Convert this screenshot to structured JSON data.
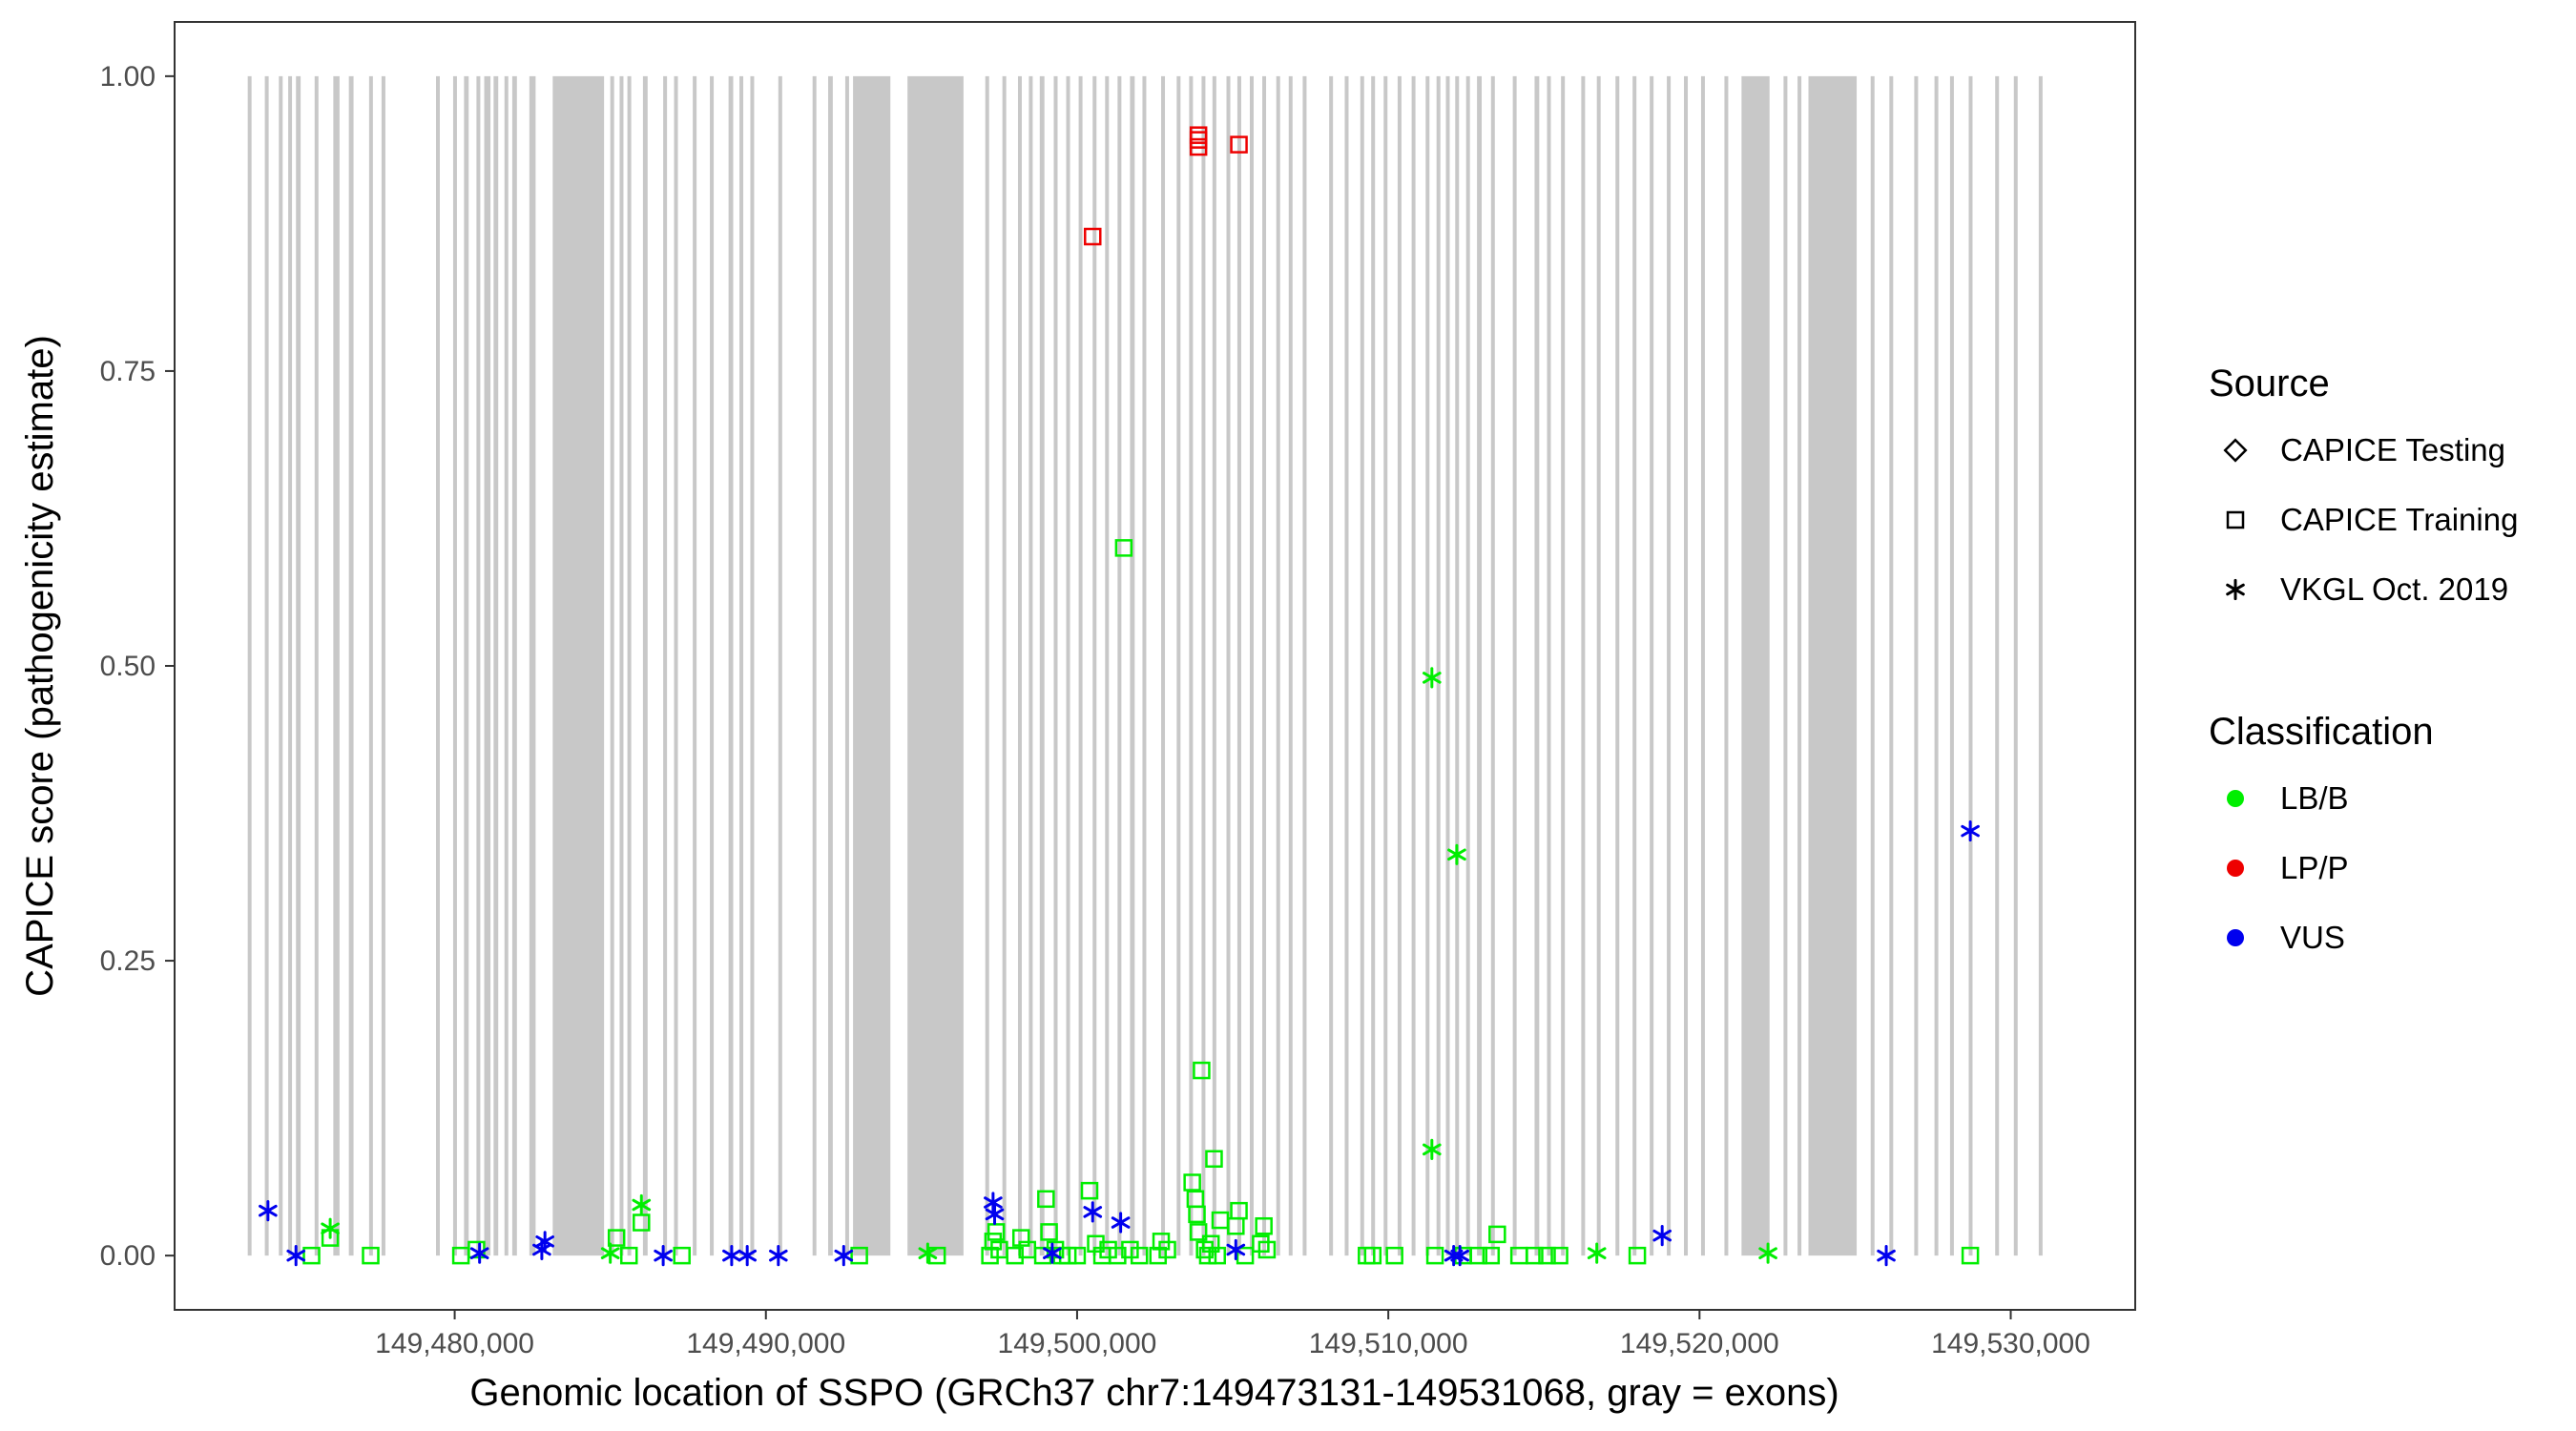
{
  "chart_data": {
    "type": "scatter",
    "xlabel": "Genomic location of SSPO (GRCh37 chr7:149473131-149531068, gray = exons)",
    "ylabel": "CAPICE score (pathogenicity estimate)",
    "xlim": [
      149471000,
      149534000
    ],
    "ylim": [
      -0.046,
      1.046
    ],
    "x_ticks": [
      149480000,
      149490000,
      149500000,
      149510000,
      149520000,
      149530000
    ],
    "x_tick_labels": [
      "149,480,000",
      "149,490,000",
      "149,500,000",
      "149,510,000",
      "149,520,000",
      "149,530,000"
    ],
    "y_ticks": [
      0,
      0.25,
      0.5,
      0.75,
      1
    ],
    "y_tick_labels": [
      "0.00",
      "0.25",
      "0.50",
      "0.75",
      "1.00"
    ],
    "grid": false,
    "exon_color": "#c8c8c8",
    "exons": [
      [
        149473350,
        149473450
      ],
      [
        149473900,
        149474000
      ],
      [
        149474350,
        149474450
      ],
      [
        149474650,
        149474750
      ],
      [
        149474900,
        149475050
      ],
      [
        149475500,
        149475600
      ],
      [
        149476100,
        149476300
      ],
      [
        149476600,
        149476750
      ],
      [
        149477250,
        149477350
      ],
      [
        149477650,
        149477750
      ],
      [
        149479400,
        149479500
      ],
      [
        149479950,
        149480050
      ],
      [
        149480300,
        149480450
      ],
      [
        149480700,
        149480800
      ],
      [
        149480950,
        149481150
      ],
      [
        149481250,
        149481400
      ],
      [
        149481600,
        149481700
      ],
      [
        149481850,
        149482000
      ],
      [
        149482400,
        149482600
      ],
      [
        149483150,
        149484800
      ],
      [
        149485000,
        149485100
      ],
      [
        149485300,
        149485400
      ],
      [
        149485550,
        149485650
      ],
      [
        149486050,
        149486200
      ],
      [
        149486700,
        149486800
      ],
      [
        149487050,
        149487150
      ],
      [
        149487650,
        149487750
      ],
      [
        149488200,
        149488300
      ],
      [
        149488800,
        149488950
      ],
      [
        149489150,
        149489250
      ],
      [
        149489500,
        149489600
      ],
      [
        149490400,
        149490500
      ],
      [
        149491500,
        149491600
      ],
      [
        149492000,
        149492150
      ],
      [
        149492550,
        149492650
      ],
      [
        149492800,
        149494000
      ],
      [
        149494550,
        149496350
      ],
      [
        149497050,
        149497150
      ],
      [
        149497600,
        149497700
      ],
      [
        149498100,
        149498200
      ],
      [
        149498450,
        149498550
      ],
      [
        149498800,
        149498950
      ],
      [
        149499250,
        149499350
      ],
      [
        149499650,
        149499750
      ],
      [
        149500050,
        149500150
      ],
      [
        149500500,
        149500600
      ],
      [
        149500900,
        149501000
      ],
      [
        149501300,
        149501400
      ],
      [
        149501700,
        149501850
      ],
      [
        149502100,
        149502200
      ],
      [
        149502700,
        149502800
      ],
      [
        149503200,
        149503300
      ],
      [
        149503600,
        149503700
      ],
      [
        149504000,
        149504100
      ],
      [
        149504350,
        149504450
      ],
      [
        149504800,
        149504900
      ],
      [
        149505150,
        149505250
      ],
      [
        149505550,
        149505650
      ],
      [
        149505950,
        149506050
      ],
      [
        149506400,
        149506500
      ],
      [
        149506800,
        149506900
      ],
      [
        149507250,
        149507350
      ],
      [
        149508100,
        149508200
      ],
      [
        149508600,
        149508700
      ],
      [
        149509100,
        149509200
      ],
      [
        149509450,
        149509550
      ],
      [
        149509850,
        149509950
      ],
      [
        149510300,
        149510400
      ],
      [
        149510750,
        149510850
      ],
      [
        149511200,
        149511300
      ],
      [
        149511550,
        149511650
      ],
      [
        149511850,
        149511950
      ],
      [
        149512150,
        149512250
      ],
      [
        149512500,
        149512600
      ],
      [
        149512850,
        149513000
      ],
      [
        149513300,
        149513400
      ],
      [
        149514000,
        149514100
      ],
      [
        149514700,
        149514850
      ],
      [
        149515100,
        149515200
      ],
      [
        149515550,
        149515650
      ],
      [
        149516200,
        149516300
      ],
      [
        149516700,
        149516800
      ],
      [
        149517300,
        149517400
      ],
      [
        149517850,
        149517950
      ],
      [
        149518400,
        149518500
      ],
      [
        149518950,
        149519050
      ],
      [
        149519500,
        149519600
      ],
      [
        149520050,
        149520150
      ],
      [
        149520800,
        149520900
      ],
      [
        149521350,
        149522250
      ],
      [
        149522700,
        149522800
      ],
      [
        149523150,
        149523250
      ],
      [
        149523500,
        149525050
      ],
      [
        149525500,
        149525600
      ],
      [
        149526100,
        149526200
      ],
      [
        149526900,
        149527000
      ],
      [
        149527550,
        149527650
      ],
      [
        149528050,
        149528150
      ],
      [
        149528650,
        149528750
      ],
      [
        149529500,
        149529600
      ],
      [
        149530100,
        149530200
      ],
      [
        149530900,
        149531000
      ]
    ],
    "legends": [
      {
        "title": "Source",
        "entries": [
          {
            "label": "CAPICE Testing",
            "shape": "diamond"
          },
          {
            "label": "CAPICE Training",
            "shape": "square"
          },
          {
            "label": "VKGL Oct. 2019",
            "shape": "asterisk"
          }
        ]
      },
      {
        "title": "Classification",
        "entries": [
          {
            "label": "LB/B",
            "color": "#00ee00"
          },
          {
            "label": "LP/P",
            "color": "#ee0000"
          },
          {
            "label": "VUS",
            "color": "#0000ee"
          }
        ]
      }
    ],
    "legend_position": "right",
    "series": [
      {
        "source": "CAPICE Training",
        "classification": "LP/P",
        "points": [
          [
            149500500,
            0.864
          ],
          [
            149503900,
            0.94
          ],
          [
            149503900,
            0.946
          ],
          [
            149503900,
            0.95
          ],
          [
            149505200,
            0.942
          ]
        ]
      },
      {
        "source": "CAPICE Training",
        "classification": "LB/B",
        "points": [
          [
            149475400,
            0.0
          ],
          [
            149476000,
            0.015
          ],
          [
            149477300,
            0.0
          ],
          [
            149480200,
            0.0
          ],
          [
            149480700,
            0.005
          ],
          [
            149485200,
            0.015
          ],
          [
            149485600,
            0.0
          ],
          [
            149486000,
            0.028
          ],
          [
            149487300,
            0.0
          ],
          [
            149493000,
            0.0
          ],
          [
            149495500,
            0.0
          ],
          [
            149497200,
            0.0
          ],
          [
            149497300,
            0.012
          ],
          [
            149497400,
            0.02
          ],
          [
            149497500,
            0.005
          ],
          [
            149498000,
            0.0
          ],
          [
            149498200,
            0.015
          ],
          [
            149498400,
            0.005
          ],
          [
            149498900,
            0.0
          ],
          [
            149499000,
            0.048
          ],
          [
            149499100,
            0.02
          ],
          [
            149499300,
            0.005
          ],
          [
            149499500,
            0.0
          ],
          [
            149499700,
            0.0
          ],
          [
            149500000,
            0.0
          ],
          [
            149500400,
            0.055
          ],
          [
            149500600,
            0.01
          ],
          [
            149500800,
            0.0
          ],
          [
            149501000,
            0.005
          ],
          [
            149501300,
            0.0
          ],
          [
            149501500,
            0.6
          ],
          [
            149501700,
            0.005
          ],
          [
            149502000,
            0.0
          ],
          [
            149502600,
            0.0
          ],
          [
            149502700,
            0.012
          ],
          [
            149502900,
            0.005
          ],
          [
            149503700,
            0.062
          ],
          [
            149503800,
            0.048
          ],
          [
            149503850,
            0.035
          ],
          [
            149503900,
            0.02
          ],
          [
            149504000,
            0.157
          ],
          [
            149504100,
            0.005
          ],
          [
            149504200,
            0.0
          ],
          [
            149504300,
            0.01
          ],
          [
            149504400,
            0.082
          ],
          [
            149504500,
            0.0
          ],
          [
            149504600,
            0.03
          ],
          [
            149505100,
            0.025
          ],
          [
            149505200,
            0.038
          ],
          [
            149505400,
            0.0
          ],
          [
            149505900,
            0.01
          ],
          [
            149506000,
            0.025
          ],
          [
            149506100,
            0.005
          ],
          [
            149509300,
            0.0
          ],
          [
            149509500,
            0.0
          ],
          [
            149510200,
            0.0
          ],
          [
            149511500,
            0.0
          ],
          [
            149512400,
            0.0
          ],
          [
            149512900,
            0.0
          ],
          [
            149513300,
            0.0
          ],
          [
            149513500,
            0.018
          ],
          [
            149514200,
            0.0
          ],
          [
            149514700,
            0.0
          ],
          [
            149515100,
            0.0
          ],
          [
            149515500,
            0.0
          ],
          [
            149518000,
            0.0
          ],
          [
            149528700,
            0.0
          ]
        ]
      },
      {
        "source": "VKGL Oct. 2019",
        "classification": "LB/B",
        "points": [
          [
            149476000,
            0.023
          ],
          [
            149485000,
            0.002
          ],
          [
            149486000,
            0.043
          ],
          [
            149495200,
            0.002
          ],
          [
            149511400,
            0.49
          ],
          [
            149512200,
            0.34
          ],
          [
            149511400,
            0.09
          ],
          [
            149516700,
            0.002
          ],
          [
            149522200,
            0.002
          ]
        ]
      },
      {
        "source": "VKGL Oct. 2019",
        "classification": "VUS",
        "points": [
          [
            149474000,
            0.038
          ],
          [
            149474900,
            0.0
          ],
          [
            149480800,
            0.002
          ],
          [
            149482800,
            0.005
          ],
          [
            149482900,
            0.012
          ],
          [
            149486700,
            0.0
          ],
          [
            149488900,
            0.0
          ],
          [
            149489400,
            0.0
          ],
          [
            149490400,
            0.0
          ],
          [
            149492500,
            0.0
          ],
          [
            149497300,
            0.045
          ],
          [
            149497350,
            0.035
          ],
          [
            149499200,
            0.002
          ],
          [
            149500500,
            0.037
          ],
          [
            149501400,
            0.028
          ],
          [
            149505100,
            0.005
          ],
          [
            149512100,
            0.0
          ],
          [
            149512300,
            0.0
          ],
          [
            149518800,
            0.017
          ],
          [
            149526000,
            0.0
          ],
          [
            149528700,
            0.36
          ]
        ]
      }
    ]
  }
}
